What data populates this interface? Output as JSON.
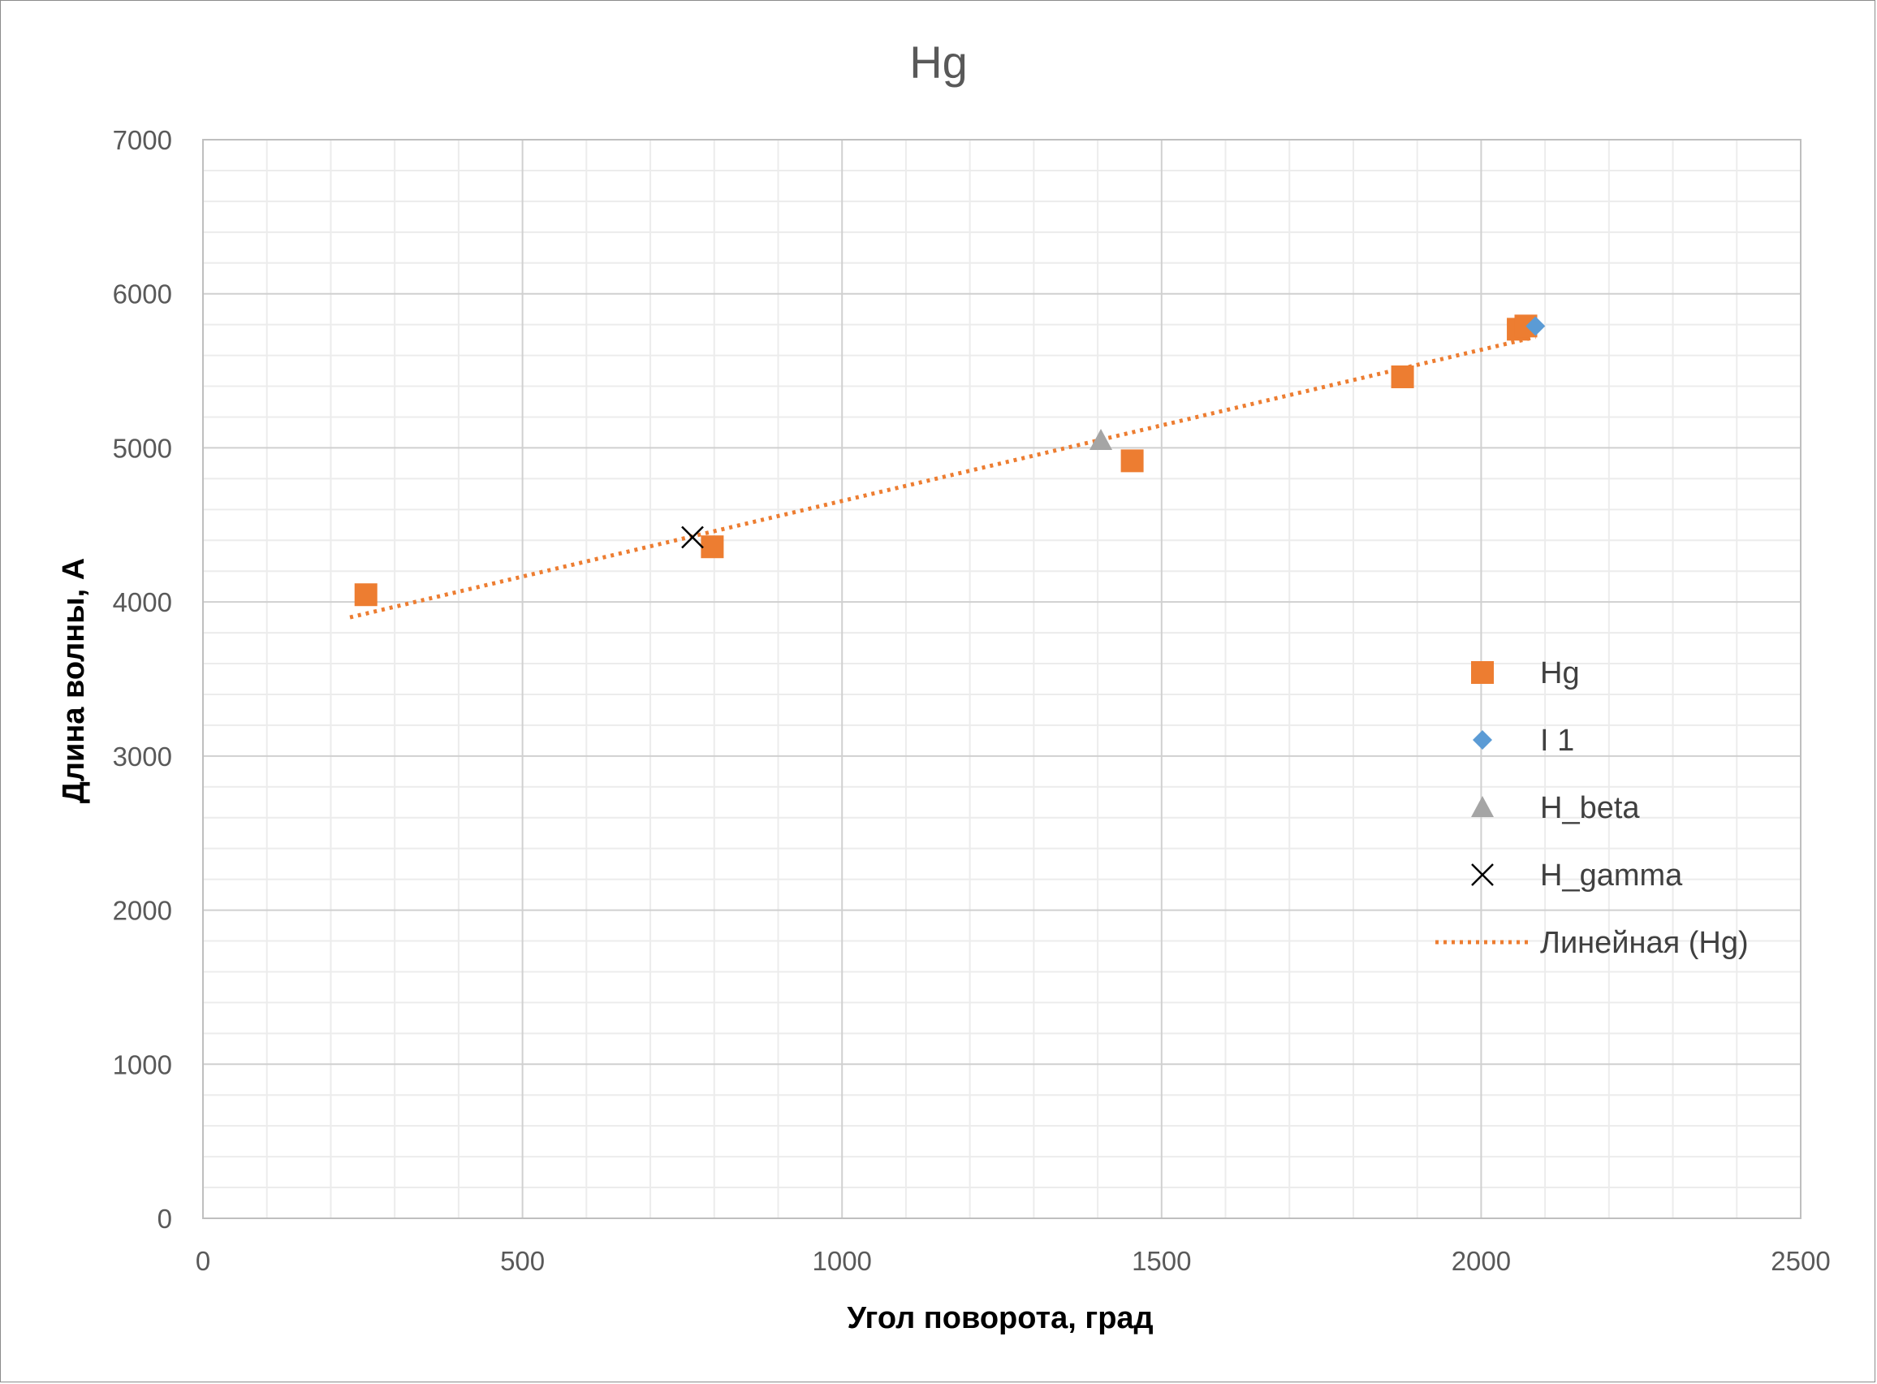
{
  "chart_data": {
    "type": "scatter",
    "title": "Hg",
    "xlabel": "Угол поворота, град",
    "ylabel": "Длина волны, А",
    "xlim": [
      0,
      2500
    ],
    "ylim": [
      0,
      7000
    ],
    "x_ticks": [
      0,
      500,
      1000,
      1500,
      2000,
      2500
    ],
    "y_ticks": [
      0,
      1000,
      2000,
      3000,
      4000,
      5000,
      6000,
      7000
    ],
    "x_tick_labels": [
      "0",
      "500",
      "1000",
      "1500",
      "2000",
      "2500"
    ],
    "y_tick_labels": [
      "0",
      "1000",
      "2000",
      "3000",
      "4000",
      "5000",
      "6000",
      "7000"
    ],
    "grid": true,
    "minor_grid": true,
    "legend_position": "right",
    "series": [
      {
        "name": "Hg",
        "marker": "square",
        "color": "#ED7D31",
        "points": [
          {
            "x": 255,
            "y": 4047
          },
          {
            "x": 797,
            "y": 4358
          },
          {
            "x": 1454,
            "y": 4916
          },
          {
            "x": 1877,
            "y": 5461
          },
          {
            "x": 2058,
            "y": 5770
          },
          {
            "x": 2070,
            "y": 5791
          }
        ]
      },
      {
        "name": "I 1",
        "marker": "diamond",
        "color": "#5B9BD5",
        "points": [
          {
            "x": 2085,
            "y": 5790
          }
        ]
      },
      {
        "name": "H_beta",
        "marker": "triangle",
        "color": "#A5A5A5",
        "points": [
          {
            "x": 1405,
            "y": 5050
          }
        ]
      },
      {
        "name": "H_gamma",
        "marker": "x",
        "color": "#000000",
        "points": [
          {
            "x": 766,
            "y": 4420
          }
        ]
      }
    ],
    "trendline": {
      "name": "Линейная (Hg)",
      "color": "#ED7D31",
      "style": "dotted",
      "x_range": [
        230,
        2085
      ],
      "y_range": [
        3900,
        5720
      ]
    }
  }
}
